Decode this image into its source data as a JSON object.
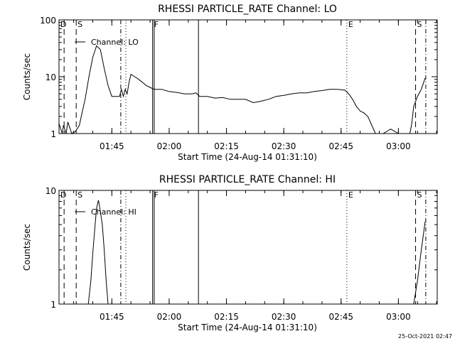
{
  "chart_data": [
    {
      "type": "line",
      "title": "RHESSI PARTICLE_RATE Channel: LO",
      "xlabel": "Start Time (24-Aug-14 01:31:10)",
      "ylabel": "Counts/sec",
      "xlim": [
        "01:31:10",
        "03:10:10"
      ],
      "ylim": [
        1,
        100
      ],
      "yscale": "log",
      "x_ticks": [
        "01:45",
        "02:00",
        "02:15",
        "02:30",
        "02:45",
        "03:00"
      ],
      "y_ticks": [
        "1",
        "10",
        "100"
      ],
      "legend": {
        "label": "Channel: LO",
        "placement": "top-left"
      },
      "markers": [
        {
          "label": "D",
          "time": "01:31:10",
          "style": "solid-dash"
        },
        {
          "label": "",
          "time": "01:32:30",
          "style": "dashed"
        },
        {
          "label": "S",
          "time": "01:35:40",
          "style": "dashed"
        },
        {
          "label": "",
          "time": "01:47:20",
          "style": "dash-dot"
        },
        {
          "label": "",
          "time": "01:48:40",
          "style": "dotted"
        },
        {
          "label": "F",
          "time": "01:55:40",
          "style": "solid"
        },
        {
          "label": "",
          "time": "01:56:05",
          "style": "solid"
        },
        {
          "label": "",
          "time": "02:07:40",
          "style": "solid"
        },
        {
          "label": "E",
          "time": "02:46:30",
          "style": "dotted"
        },
        {
          "label": "S",
          "time": "03:04:30",
          "style": "dashed"
        },
        {
          "label": "",
          "time": "03:07:10",
          "style": "dash-dot"
        }
      ],
      "series": [
        {
          "x": [
            "01:31:10",
            "01:32:00",
            "01:32:20",
            "01:33:00",
            "01:33:30",
            "01:34:30",
            "01:35:30",
            "01:36:30",
            "01:37:00",
            "01:38:00",
            "01:39:00",
            "01:40:00",
            "01:41:00",
            "01:42:00",
            "01:43:00",
            "01:44:00",
            "01:45:00",
            "01:46:00",
            "01:47:00",
            "01:47:30",
            "01:48:00",
            "01:48:30",
            "01:49:00",
            "01:49:30",
            "01:50:00",
            "01:51:00",
            "01:52:00",
            "01:53:00",
            "01:54:00",
            "01:55:00",
            "01:56:00",
            "01:58:00",
            "02:00:00",
            "02:02:00",
            "02:04:00",
            "02:06:00",
            "02:07:00",
            "02:08:00",
            "02:10:00",
            "02:12:00",
            "02:14:00",
            "02:16:00",
            "02:18:00",
            "02:20:00",
            "02:22:00",
            "02:24:00",
            "02:26:00",
            "02:28:00",
            "02:30:00",
            "02:32:00",
            "02:34:00",
            "02:36:00",
            "02:38:00",
            "02:40:00",
            "02:42:00",
            "02:44:00",
            "02:46:00",
            "02:47:00",
            "02:48:00",
            "02:49:00",
            "02:50:00",
            "02:51:00",
            "02:52:00",
            "02:54:00",
            "02:56:00",
            "02:58:00",
            "03:00:00",
            "03:02:00",
            "03:03:00",
            "03:03:30",
            "03:04:00",
            "03:05:00",
            "03:06:00",
            "03:07:00"
          ],
          "values": [
            1.5,
            1,
            1.4,
            1,
            1.6,
            1,
            1.1,
            1.4,
            2,
            4,
            10,
            22,
            35,
            30,
            14,
            7,
            4.5,
            4.5,
            4.5,
            6,
            4.5,
            6,
            5,
            8,
            11,
            10,
            9,
            8,
            7,
            6.5,
            6,
            6,
            5.5,
            5.3,
            5,
            5,
            5.2,
            4.5,
            4.5,
            4.2,
            4.3,
            4,
            4,
            4,
            3.5,
            3.7,
            4,
            4.5,
            4.7,
            5,
            5.2,
            5.2,
            5.5,
            5.7,
            6,
            6,
            5.8,
            5,
            4,
            3,
            2.5,
            2.3,
            2,
            1,
            1,
            1.2,
            1,
            1,
            1,
            1.5,
            3,
            4.5,
            6,
            9.5
          ]
        }
      ]
    },
    {
      "type": "line",
      "title": "RHESSI PARTICLE_RATE Channel: HI",
      "xlabel": "Start Time (24-Aug-14 01:31:10)",
      "ylabel": "Counts/sec",
      "xlim": [
        "01:31:10",
        "03:10:10"
      ],
      "ylim": [
        1,
        10
      ],
      "yscale": "log",
      "x_ticks": [
        "01:45",
        "02:00",
        "02:15",
        "02:30",
        "02:45",
        "03:00"
      ],
      "y_ticks": [
        "1",
        "10"
      ],
      "legend": {
        "label": "Channel: HI",
        "placement": "top-left"
      },
      "markers": [
        {
          "label": "D",
          "time": "01:31:10",
          "style": "solid-dash"
        },
        {
          "label": "",
          "time": "01:32:30",
          "style": "dashed"
        },
        {
          "label": "S",
          "time": "01:35:40",
          "style": "dashed"
        },
        {
          "label": "",
          "time": "01:47:20",
          "style": "dash-dot"
        },
        {
          "label": "",
          "time": "01:48:40",
          "style": "dotted"
        },
        {
          "label": "F",
          "time": "01:55:40",
          "style": "solid"
        },
        {
          "label": "",
          "time": "01:56:05",
          "style": "solid"
        },
        {
          "label": "",
          "time": "02:07:40",
          "style": "solid"
        },
        {
          "label": "E",
          "time": "02:46:30",
          "style": "dotted"
        },
        {
          "label": "S",
          "time": "03:04:30",
          "style": "dashed"
        },
        {
          "label": "",
          "time": "03:07:10",
          "style": "dash-dot"
        }
      ],
      "series": [
        {
          "x": [
            "01:38:50",
            "01:39:30",
            "01:40:00",
            "01:40:30",
            "01:41:00",
            "01:41:30",
            "01:42:00",
            "01:42:30",
            "01:43:00",
            "01:43:30",
            "01:44:00"
          ],
          "values": [
            1,
            1.6,
            2.8,
            4.5,
            7,
            8.2,
            6.5,
            5,
            3,
            1.6,
            1
          ]
        },
        {
          "x": [
            "03:04:00",
            "03:05:00",
            "03:06:00",
            "03:07:00"
          ],
          "values": [
            1,
            1.6,
            3,
            5.3
          ]
        }
      ]
    }
  ],
  "footer": {
    "timestamp": "25-Oct-2021 02:47"
  }
}
